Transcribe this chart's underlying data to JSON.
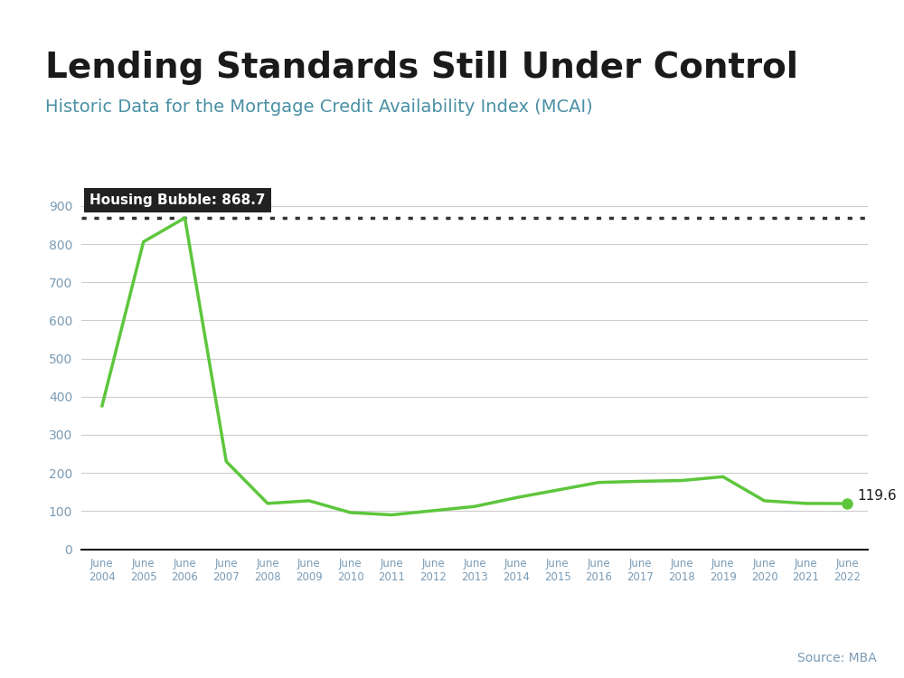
{
  "title": "Lending Standards Still Under Control",
  "subtitle": "Historic Data for the Mortgage Credit Availability Index (MCAI)",
  "source": "Source: MBA",
  "title_color": "#1a1a1a",
  "subtitle_color": "#4a90a4",
  "top_bar_color": "#4ac8d8",
  "background_color": "#ffffff",
  "line_color": "#5dc63c",
  "dot_color": "#5dc63c",
  "years": [
    "June\n2004",
    "June\n2005",
    "June\n2006",
    "June\n2007",
    "June\n2008",
    "June\n2009",
    "June\n2010",
    "June\n2011",
    "June\n2012",
    "June\n2013",
    "June\n2014",
    "June\n2015",
    "June\n2016",
    "June\n2017",
    "June\n2018",
    "June\n2019",
    "June\n2020",
    "June\n2021",
    "June\n2022"
  ],
  "values": [
    376,
    806,
    868.7,
    230,
    120,
    127,
    96,
    90,
    101,
    112,
    135,
    155,
    175,
    178,
    180,
    190,
    127,
    120,
    119.6
  ],
  "housing_bubble_value": 868.7,
  "housing_bubble_label": "Housing Bubble: 868.7",
  "last_value_label": "119.6",
  "ylim": [
    0,
    960
  ],
  "yticks": [
    0,
    100,
    200,
    300,
    400,
    500,
    600,
    700,
    800,
    900
  ],
  "grid_color": "#cccccc",
  "axis_color": "#888888",
  "tick_label_color": "#7a9bb5",
  "dotted_line_color": "#333333",
  "annotation_bg": "#222222",
  "annotation_text_color": "#ffffff"
}
